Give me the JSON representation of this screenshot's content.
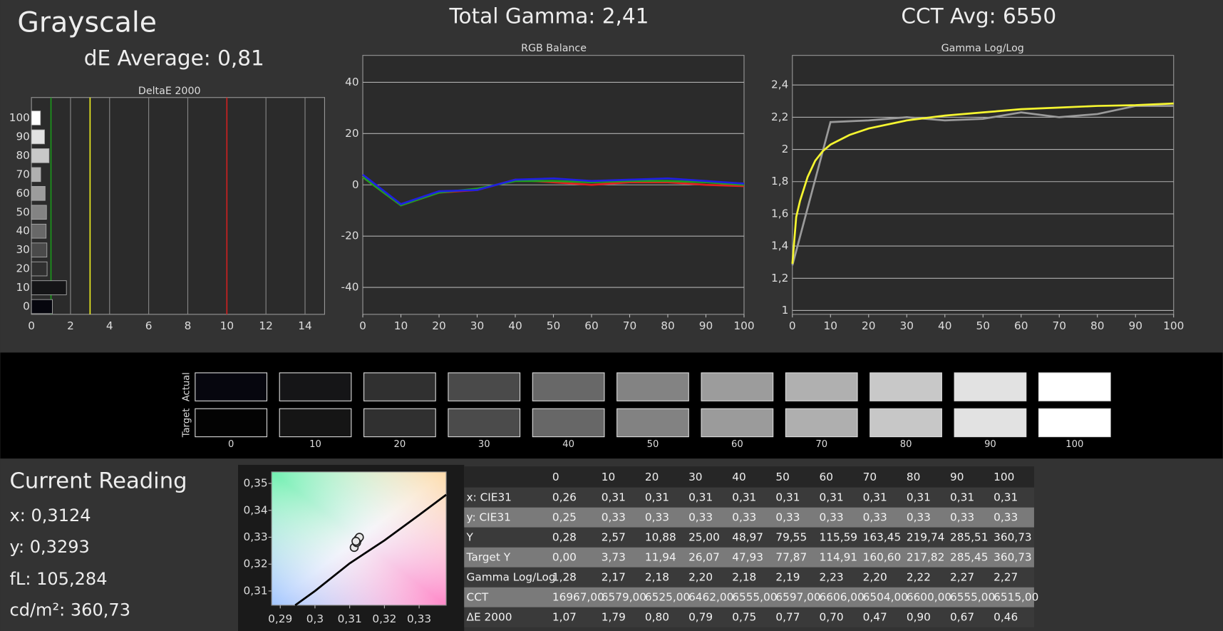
{
  "header": {
    "title": "Grayscale",
    "de_average": "dE Average: 0,81",
    "total_gamma": "Total Gamma: 2,41",
    "cct_avg": "CCT Avg: 6550"
  },
  "chart_data": [
    {
      "type": "hbar",
      "title": "DeltaE 2000",
      "categories": [
        "0",
        "10",
        "20",
        "30",
        "40",
        "50",
        "60",
        "70",
        "80",
        "90",
        "100"
      ],
      "values": [
        1.07,
        1.79,
        0.8,
        0.79,
        0.75,
        0.77,
        0.7,
        0.47,
        0.9,
        0.67,
        0.46
      ],
      "xlim": [
        0,
        15
      ],
      "xticks": [
        0,
        2,
        4,
        6,
        8,
        10,
        12,
        14
      ],
      "grid": true,
      "reference_lines": [
        {
          "value": 1,
          "color": "#1a9a1a"
        },
        {
          "value": 3,
          "color": "#f0f020"
        },
        {
          "value": 10,
          "color": "#d02020"
        }
      ]
    },
    {
      "type": "line",
      "title": "RGB Balance",
      "x": [
        0,
        10,
        20,
        30,
        40,
        50,
        60,
        70,
        80,
        90,
        100
      ],
      "series": [
        {
          "color": "#e02020",
          "values": [
            3,
            -8,
            -3,
            -2,
            2,
            1,
            0,
            1,
            1,
            0,
            -0.5
          ]
        },
        {
          "color": "#20a020",
          "values": [
            3,
            -8,
            -3,
            -1.5,
            1.5,
            1.5,
            1,
            1.5,
            1.5,
            1,
            0
          ]
        },
        {
          "color": "#2020e0",
          "values": [
            4,
            -7.5,
            -2.5,
            -2,
            2,
            2.5,
            1.5,
            2,
            2.5,
            1.5,
            0.5
          ]
        }
      ],
      "xlim": [
        0,
        100
      ],
      "xticks": [
        0,
        10,
        20,
        30,
        40,
        50,
        60,
        70,
        80,
        90,
        100
      ],
      "ylim": [
        -50.5,
        50.5
      ],
      "yticks": [
        -40,
        -20,
        0,
        20,
        40
      ],
      "grid": true
    },
    {
      "type": "line",
      "title": "Gamma Log/Log",
      "x": [
        0,
        10,
        20,
        30,
        40,
        50,
        60,
        70,
        80,
        90,
        100
      ],
      "series": [
        {
          "color": "#9a9a9a",
          "values": [
            1.28,
            2.17,
            2.18,
            2.2,
            2.18,
            2.19,
            2.23,
            2.2,
            2.22,
            2.27,
            2.27
          ]
        },
        {
          "color": "#f5f530",
          "x": [
            0,
            1,
            2,
            4,
            6,
            8,
            10,
            15,
            20,
            30,
            40,
            50,
            60,
            70,
            80,
            90,
            100
          ],
          "values": [
            1.29,
            1.58,
            1.68,
            1.83,
            1.93,
            1.99,
            2.03,
            2.09,
            2.13,
            2.18,
            2.21,
            2.23,
            2.25,
            2.26,
            2.27,
            2.275,
            2.285
          ]
        }
      ],
      "xlim": [
        0,
        100
      ],
      "xticks": [
        0,
        10,
        20,
        30,
        40,
        50,
        60,
        70,
        80,
        90,
        100
      ],
      "ylim": [
        0.976,
        2.584
      ],
      "yticks": [
        1,
        {
          "value": 1.2,
          "label": "1,2"
        },
        {
          "value": 1.4,
          "label": "1,4"
        },
        {
          "value": 1.6,
          "label": "1,6"
        },
        {
          "value": 1.8,
          "label": "1,8"
        },
        2,
        {
          "value": 2.2,
          "label": "2,2"
        },
        {
          "value": 2.4,
          "label": "2,4"
        }
      ],
      "grid": true
    },
    {
      "type": "scatter",
      "points": {
        "x": [
          0.3113,
          0.312,
          0.3124,
          0.3128,
          0.3118
        ],
        "y": [
          0.3262,
          0.328,
          0.3293,
          0.33,
          0.3285
        ]
      },
      "locus": {
        "color": "#000000",
        "x": [
          0.2943,
          0.3,
          0.31,
          0.32,
          0.33,
          0.3378
        ],
        "y": [
          0.3047,
          0.31,
          0.3203,
          0.3288,
          0.3383,
          0.3458
        ]
      },
      "xlim": [
        0.2875,
        0.3378
      ],
      "ylim": [
        0.3047,
        0.3543
      ],
      "xticks": [
        {
          "value": 0.29,
          "label": "0,29"
        },
        {
          "value": 0.3,
          "label": "0,3"
        },
        {
          "value": 0.31,
          "label": "0,31"
        },
        {
          "value": 0.32,
          "label": "0,32"
        },
        {
          "value": 0.33,
          "label": "0,33"
        }
      ],
      "yticks": [
        {
          "value": 0.31,
          "label": "0,31"
        },
        {
          "value": 0.32,
          "label": "0,32"
        },
        {
          "value": 0.33,
          "label": "0,33"
        },
        {
          "value": 0.34,
          "label": "0,34"
        },
        {
          "value": 0.35,
          "label": "0,35"
        }
      ]
    }
  ],
  "swatches": {
    "actual_label": "Actual",
    "target_label": "Target",
    "levels": [
      "0",
      "10",
      "20",
      "30",
      "40",
      "50",
      "60",
      "70",
      "80",
      "90",
      "100"
    ],
    "actual_colors": [
      "#06060e",
      "#151517",
      "#303030",
      "#4a4a4a",
      "#686868",
      "#838383",
      "#9c9c9c",
      "#b0b0b0",
      "#c8c8c8",
      "#e2e2e2",
      "#ffffff"
    ],
    "target_colors": [
      "#030303",
      "#151515",
      "#303030",
      "#4b4b4b",
      "#676767",
      "#828282",
      "#9b9b9b",
      "#afafaf",
      "#c7c7c7",
      "#e2e2e2",
      "#ffffff"
    ]
  },
  "current_reading": {
    "title": "Current Reading",
    "x": "x: 0,3124",
    "y": "y: 0,3293",
    "fl": "fL: 105,284",
    "cdm2": "cd/m²: 360,73"
  },
  "table": {
    "columns": [
      "0",
      "10",
      "20",
      "30",
      "40",
      "50",
      "60",
      "70",
      "80",
      "90",
      "100"
    ],
    "rows": [
      [
        "x: CIE31",
        "0,26",
        "0,31",
        "0,31",
        "0,31",
        "0,31",
        "0,31",
        "0,31",
        "0,31",
        "0,31",
        "0,31",
        "0,31"
      ],
      [
        "y: CIE31",
        "0,25",
        "0,33",
        "0,33",
        "0,33",
        "0,33",
        "0,33",
        "0,33",
        "0,33",
        "0,33",
        "0,33",
        "0,33"
      ],
      [
        "Y",
        "0,28",
        "2,57",
        "10,88",
        "25,00",
        "48,97",
        "79,55",
        "115,59",
        "163,45",
        "219,74",
        "285,51",
        "360,73"
      ],
      [
        "Target Y",
        "0,00",
        "3,73",
        "11,94",
        "26,07",
        "47,93",
        "77,87",
        "114,91",
        "160,60",
        "217,82",
        "285,45",
        "360,73"
      ],
      [
        "Gamma Log/Log",
        "1,28",
        "2,17",
        "2,18",
        "2,20",
        "2,18",
        "2,19",
        "2,23",
        "2,20",
        "2,22",
        "2,27",
        "2,27"
      ],
      [
        "CCT",
        "16967,00",
        "6579,00",
        "6525,00",
        "6462,00",
        "6555,00",
        "6597,00",
        "6606,00",
        "6504,00",
        "6600,00",
        "6555,00",
        "6515,00"
      ],
      [
        "ΔE 2000",
        "1,07",
        "1,79",
        "0,80",
        "0,79",
        "0,75",
        "0,77",
        "0,70",
        "0,47",
        "0,90",
        "0,67",
        "0,46"
      ]
    ]
  }
}
